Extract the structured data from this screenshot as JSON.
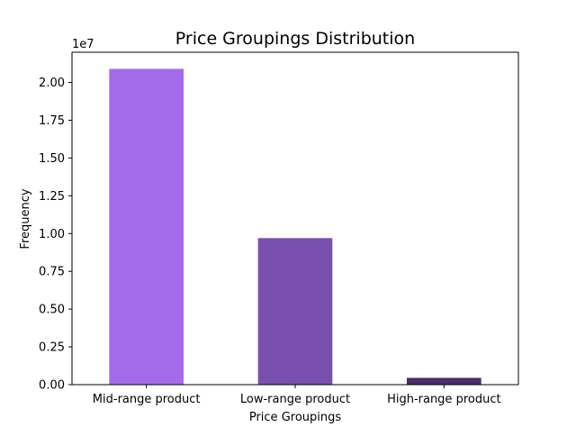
{
  "chart_data": {
    "type": "bar",
    "title": "Price Groupings Distribution",
    "xlabel": "Price Groupings",
    "ylabel": "Frequency",
    "y_offset_label": "1e7",
    "y_scale_factor": 10000000,
    "categories": [
      "Mid-range product",
      "Low-range product",
      "High-range product"
    ],
    "values": [
      20900000,
      9700000,
      450000
    ],
    "colors": [
      "#a36bea",
      "#794fad",
      "#4a2d6b"
    ],
    "ylim": [
      0,
      22000000
    ],
    "yticks": [
      0,
      2500000,
      5000000,
      7500000,
      10000000,
      12500000,
      15000000,
      17500000,
      20000000
    ],
    "ytick_labels": [
      "0.00",
      "0.25",
      "0.50",
      "0.75",
      "1.00",
      "1.25",
      "1.50",
      "1.75",
      "2.00"
    ],
    "grid": false
  }
}
